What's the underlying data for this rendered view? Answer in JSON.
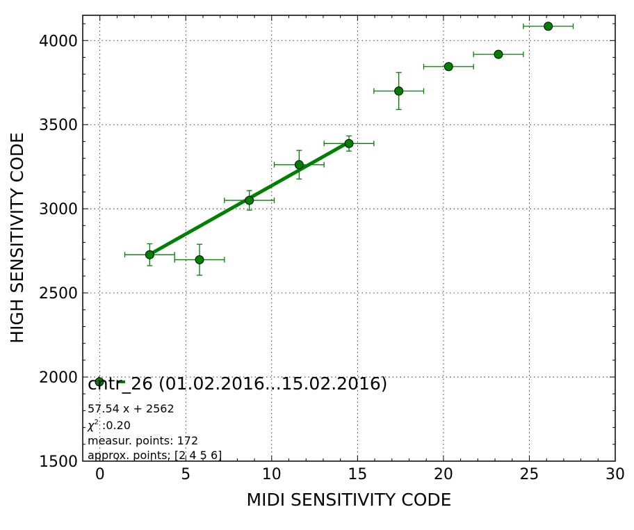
{
  "chart_data": {
    "type": "scatter",
    "xlabel": "MIDI SENSITIVITY CODE",
    "ylabel": "HIGH SENSITIVITY CODE",
    "xlim": [
      -1,
      30
    ],
    "ylim": [
      1500,
      4150
    ],
    "xticks": [
      0,
      5,
      10,
      15,
      20,
      25,
      30
    ],
    "yticks": [
      1500,
      2000,
      2500,
      3000,
      3500,
      4000
    ],
    "grid": true,
    "color": "#008000",
    "points": [
      {
        "x": 2.9,
        "y": 2727,
        "xerr": 1.45,
        "yerr": 65
      },
      {
        "x": 5.8,
        "y": 2697,
        "xerr": 1.45,
        "yerr": 92
      },
      {
        "x": 8.7,
        "y": 3050,
        "xerr": 1.45,
        "yerr": 58
      },
      {
        "x": 11.6,
        "y": 3262,
        "xerr": 1.45,
        "yerr": 85
      },
      {
        "x": 14.5,
        "y": 3388,
        "xerr": 1.45,
        "yerr": 45
      },
      {
        "x": 17.4,
        "y": 3700,
        "xerr": 1.45,
        "yerr": 110
      },
      {
        "x": 20.3,
        "y": 3845,
        "xerr": 1.45,
        "yerr": 12
      },
      {
        "x": 23.2,
        "y": 3918,
        "xerr": 1.45,
        "yerr": 8
      },
      {
        "x": 26.1,
        "y": 4085,
        "xerr": 1.45,
        "yerr": 8
      }
    ],
    "fit": {
      "slope": 57.54,
      "intercept": 2562,
      "x_from": 2.9,
      "x_to": 14.5
    },
    "legend": {
      "title": "cntr_26 (01.02.2016...15.02.2016)",
      "equation": "57.54 x + 2562",
      "chi2_symbol": "χ",
      "chi2_exp": "2",
      "chi2_value": " :0.20",
      "measur": "measur. points: 172",
      "approx": "approx. points: [2 4 5 6]",
      "placement": "lower-left"
    }
  }
}
